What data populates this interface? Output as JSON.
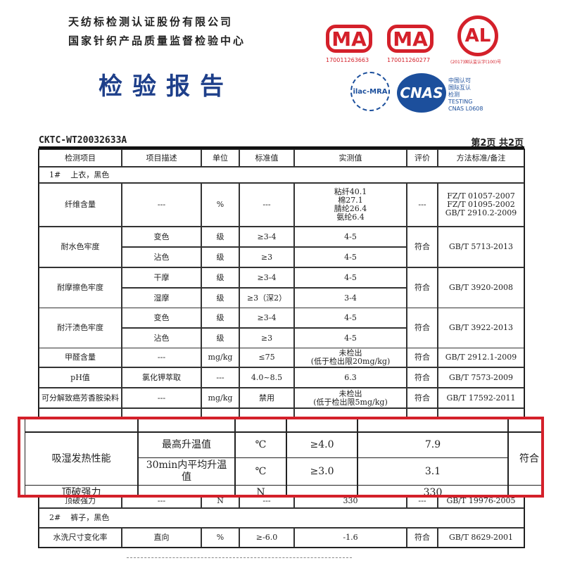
{
  "header": {
    "company": "天纺标检测认证股份有限公司",
    "center": "国家针织产品质量监督检验中心",
    "title": "检验报告",
    "report_no": "CKTC-WT20032633A",
    "page": "第2页  共2页"
  },
  "logos": {
    "cma1": {
      "text": "MA",
      "number": "170011263663"
    },
    "cma2": {
      "text": "MA",
      "number": "170011260277"
    },
    "cal": {
      "text": "AL",
      "number": "(2017)国认监认字(100)号"
    },
    "ilac": "ilac-MRA",
    "cnas": {
      "text": "CNAS",
      "lines": [
        "中国认可",
        "国际互认",
        "检测",
        "TESTING",
        "CNAS L0608"
      ]
    }
  },
  "colors": {
    "title": "#1e3f8a",
    "logo_red": "#d4202a",
    "cnas_blue": "#1c4f9c",
    "highlight": "#d4202a"
  },
  "table": {
    "headers": [
      "检测项目",
      "项目描述",
      "单位",
      "标准值",
      "实测值",
      "评价",
      "方法标准/备注"
    ],
    "group1": "1#    上衣，黑色",
    "fiber": {
      "item": "纤维含量",
      "desc": "---",
      "unit": "%",
      "std": "---",
      "values": [
        "粘纤40.1",
        "棉27.1",
        "腈纶26.4",
        "氨纶6.4"
      ],
      "eval": "---",
      "methods": [
        "FZ/T 01057-2007",
        "FZ/T 01095-2002",
        "GB/T 2910.2-2009"
      ]
    },
    "water": {
      "item": "耐水色牢度",
      "rows": [
        {
          "desc": "变色",
          "unit": "级",
          "std": "≥3-4",
          "val": "4-5"
        },
        {
          "desc": "沾色",
          "unit": "级",
          "std": "≥3",
          "val": "4-5"
        }
      ],
      "eval": "符合",
      "method": "GB/T 5713-2013"
    },
    "rub": {
      "item": "耐摩擦色牢度",
      "rows": [
        {
          "desc": "干摩",
          "unit": "级",
          "std": "≥3-4",
          "val": "4-5"
        },
        {
          "desc": "湿摩",
          "unit": "级",
          "std": "≥3（深2）",
          "val": "3-4"
        }
      ],
      "eval": "符合",
      "method": "GB/T 3920-2008"
    },
    "sweat": {
      "item": "耐汗渍色牢度",
      "rows": [
        {
          "desc": "变色",
          "unit": "级",
          "std": "≥3-4",
          "val": "4-5"
        },
        {
          "desc": "沾色",
          "unit": "级",
          "std": "≥3",
          "val": "4-5"
        }
      ],
      "eval": "符合",
      "method": "GB/T 3922-2013"
    },
    "formaldehyde": {
      "item": "甲醛含量",
      "desc": "---",
      "unit": "mg/kg",
      "std": "≤75",
      "val": "未检出",
      "val2": "(低于检出限20mg/kg)",
      "eval": "符合",
      "method": "GB/T 2912.1-2009"
    },
    "ph": {
      "item": "pH值",
      "desc": "氯化钾萃取",
      "unit": "---",
      "std": "4.0~8.5",
      "val": "6.3",
      "eval": "符合",
      "method": "GB/T 7573-2009"
    },
    "azo": {
      "item": "可分解致癌芳香胺染料",
      "desc": "---",
      "unit": "mg/kg",
      "std": "禁用",
      "val": "未检出",
      "val2": "(低于检出限5mg/kg)",
      "eval": "符合",
      "method": "GB/T 17592-2011"
    },
    "burst": {
      "item": "顶破强力",
      "desc": "---",
      "unit": "N",
      "std": "---",
      "val": "330",
      "eval": "---",
      "method": "GB/T 19976-2005"
    },
    "group2": "2#    裤子，黑色",
    "wash": {
      "item": "水洗尺寸变化率",
      "desc": "直向",
      "unit": "%",
      "std": "≥-6.0",
      "val": "-1.6",
      "eval": "符合",
      "method": "GB/T 8629-2001"
    }
  },
  "highlight": {
    "item": "吸湿发热性能",
    "rows": [
      {
        "desc": "最高升温值",
        "unit": "℃",
        "std": "≥4.0",
        "val": "7.9"
      },
      {
        "desc": "30min内平均升温值",
        "unit": "℃",
        "std": "≥3.0",
        "val": "3.1"
      }
    ],
    "eval": "符合",
    "next_item": "顶破强力",
    "next_unit": "N",
    "next_val": "330"
  }
}
